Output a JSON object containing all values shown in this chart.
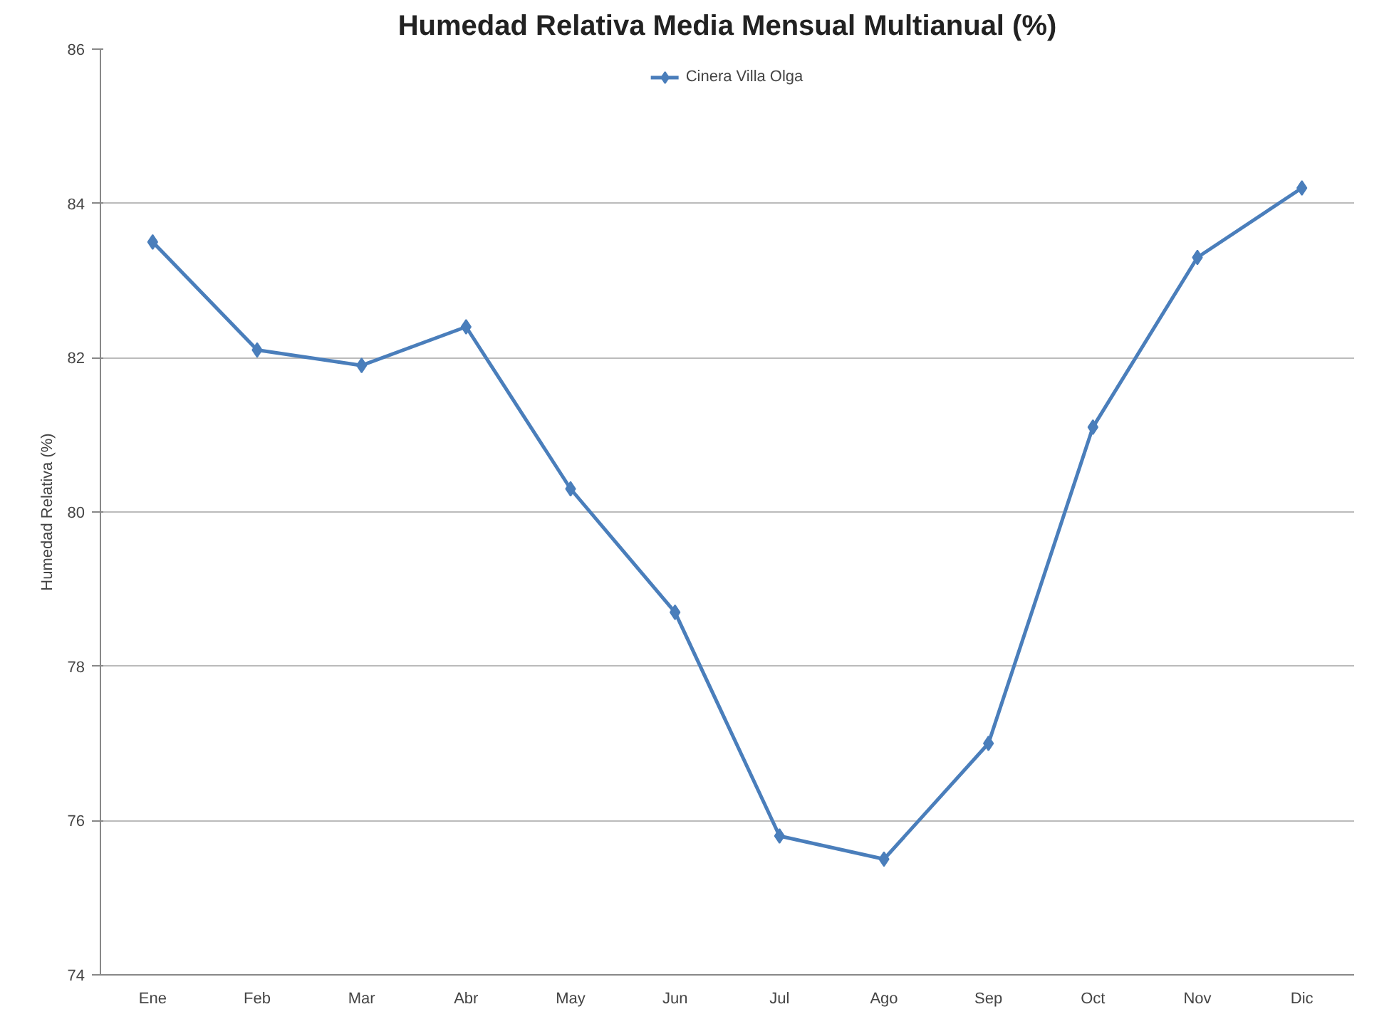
{
  "chart_data": {
    "type": "line",
    "title": "Humedad Relativa Media Mensual Multianual (%)",
    "ylabel": "Humedad Relativa (%)",
    "categories": [
      "Ene",
      "Feb",
      "Mar",
      "Abr",
      "May",
      "Jun",
      "Jul",
      "Ago",
      "Sep",
      "Oct",
      "Nov",
      "Dic"
    ],
    "series": [
      {
        "name": "Cinera Villa Olga",
        "color": "#4a7ebb",
        "values": [
          83.5,
          82.1,
          81.9,
          82.4,
          80.3,
          78.7,
          75.8,
          75.5,
          77.0,
          81.1,
          83.3,
          84.2
        ]
      }
    ],
    "ylim": [
      74,
      86
    ],
    "yticks": [
      74,
      76,
      78,
      80,
      82,
      84,
      86
    ],
    "grid": "y",
    "legend": "top",
    "marker": "diamond",
    "line_style": "solid"
  }
}
